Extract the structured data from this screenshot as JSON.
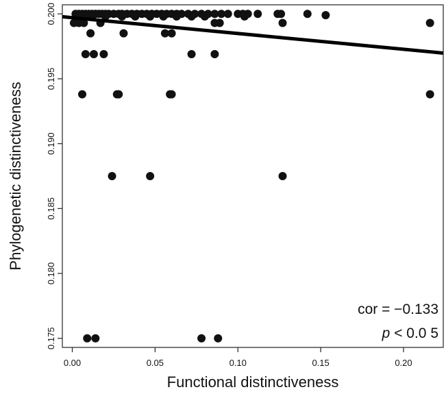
{
  "chart_data": {
    "type": "scatter",
    "title": "",
    "xlabel": "Functional distinctiveness",
    "ylabel": "Phylogenetic distinctiveness",
    "xlim": [
      -0.006,
      0.224
    ],
    "ylim": [
      0.1743,
      0.2007
    ],
    "x_ticks": [
      0.0,
      0.05,
      0.1,
      0.15,
      0.2
    ],
    "x_tick_labels": [
      "0.00",
      "0.05",
      "0.10",
      "0.15",
      "0.20"
    ],
    "y_ticks": [
      0.175,
      0.18,
      0.185,
      0.19,
      0.195,
      0.2
    ],
    "y_tick_labels": [
      "0.175",
      "0.180",
      "0.185",
      "0.190",
      "0.195",
      "0.200"
    ],
    "grid": false,
    "series": [
      {
        "points": [
          [
            0.002,
            0.2
          ],
          [
            0.004,
            0.2
          ],
          [
            0.006,
            0.2
          ],
          [
            0.008,
            0.2
          ],
          [
            0.01,
            0.2
          ],
          [
            0.012,
            0.2
          ],
          [
            0.014,
            0.2
          ],
          [
            0.016,
            0.2
          ],
          [
            0.018,
            0.2
          ],
          [
            0.02,
            0.2
          ],
          [
            0.022,
            0.2
          ],
          [
            0.025,
            0.2
          ],
          [
            0.028,
            0.2
          ],
          [
            0.03,
            0.2
          ],
          [
            0.033,
            0.2
          ],
          [
            0.036,
            0.2
          ],
          [
            0.039,
            0.2
          ],
          [
            0.042,
            0.2
          ],
          [
            0.045,
            0.2
          ],
          [
            0.048,
            0.2
          ],
          [
            0.051,
            0.2
          ],
          [
            0.054,
            0.2
          ],
          [
            0.057,
            0.2
          ],
          [
            0.06,
            0.2
          ],
          [
            0.063,
            0.2
          ],
          [
            0.066,
            0.2
          ],
          [
            0.07,
            0.2
          ],
          [
            0.074,
            0.2
          ],
          [
            0.078,
            0.2
          ],
          [
            0.082,
            0.2
          ],
          [
            0.086,
            0.2
          ],
          [
            0.09,
            0.2
          ],
          [
            0.094,
            0.2
          ],
          [
            0.1,
            0.2
          ],
          [
            0.103,
            0.2
          ],
          [
            0.106,
            0.2
          ],
          [
            0.112,
            0.2
          ],
          [
            0.124,
            0.2
          ],
          [
            0.126,
            0.2
          ],
          [
            0.142,
            0.2
          ],
          [
            0.003,
            0.1998
          ],
          [
            0.012,
            0.1998
          ],
          [
            0.02,
            0.1998
          ],
          [
            0.03,
            0.1998
          ],
          [
            0.038,
            0.1998
          ],
          [
            0.047,
            0.1998
          ],
          [
            0.055,
            0.1998
          ],
          [
            0.063,
            0.1998
          ],
          [
            0.072,
            0.1998
          ],
          [
            0.08,
            0.1998
          ],
          [
            0.104,
            0.1998
          ],
          [
            0.153,
            0.1999
          ],
          [
            0.001,
            0.1993
          ],
          [
            0.004,
            0.1993
          ],
          [
            0.007,
            0.1993
          ],
          [
            0.017,
            0.1993
          ],
          [
            0.086,
            0.1993
          ],
          [
            0.089,
            0.1993
          ],
          [
            0.127,
            0.1993
          ],
          [
            0.216,
            0.1993
          ],
          [
            0.011,
            0.1985
          ],
          [
            0.031,
            0.1985
          ],
          [
            0.056,
            0.1985
          ],
          [
            0.06,
            0.1985
          ],
          [
            0.008,
            0.1969
          ],
          [
            0.013,
            0.1969
          ],
          [
            0.019,
            0.1969
          ],
          [
            0.072,
            0.1969
          ],
          [
            0.086,
            0.1969
          ],
          [
            0.006,
            0.1938
          ],
          [
            0.027,
            0.1938
          ],
          [
            0.028,
            0.1938
          ],
          [
            0.059,
            0.1938
          ],
          [
            0.06,
            0.1938
          ],
          [
            0.216,
            0.1938
          ],
          [
            0.024,
            0.1875
          ],
          [
            0.047,
            0.1875
          ],
          [
            0.127,
            0.1875
          ],
          [
            0.009,
            0.175
          ],
          [
            0.014,
            0.175
          ],
          [
            0.078,
            0.175
          ],
          [
            0.088,
            0.175
          ]
        ]
      }
    ],
    "regression_line": {
      "x": [
        -0.006,
        0.224
      ],
      "y": [
        0.19978,
        0.19698
      ]
    },
    "annotations": {
      "cor_label": "cor = −0.133",
      "p_italic": "p",
      "p_rest": " < 0.0 5"
    },
    "colors": {
      "points": "#111111",
      "line": "#000000",
      "axes": "#222222",
      "text": "#111111"
    }
  }
}
